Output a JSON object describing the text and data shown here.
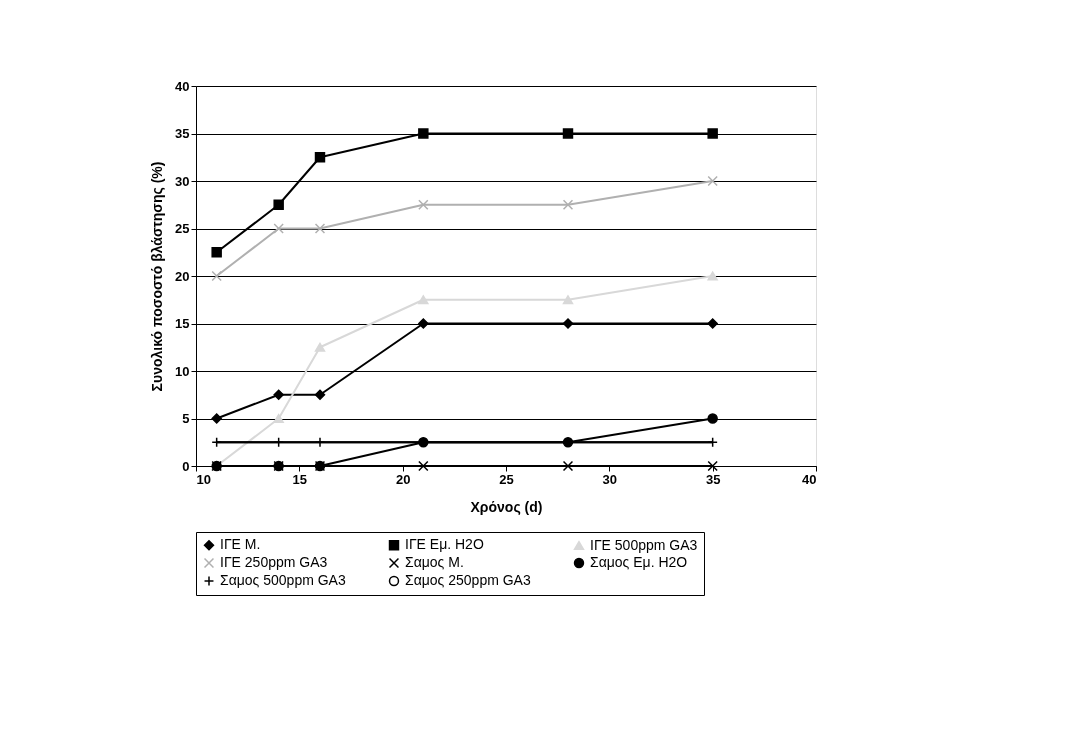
{
  "chart_data": {
    "type": "line",
    "xlabel": "Χρόνος (d)",
    "ylabel": "Συνολικό ποσοστό βλάστησης (%)",
    "x": [
      11,
      14,
      16,
      21,
      28,
      35
    ],
    "xlim": [
      10,
      40
    ],
    "xticks": [
      10,
      15,
      20,
      25,
      30,
      35,
      40
    ],
    "ylim": [
      0,
      40
    ],
    "yticks": [
      0,
      5,
      10,
      15,
      20,
      25,
      30,
      35,
      40
    ],
    "grid": "y",
    "legend": "bottom",
    "series": [
      {
        "name": "ΙΓΕ Μ.",
        "color": "#000000",
        "marker": "diamond",
        "values": [
          5,
          7.5,
          7.5,
          15,
          15,
          15
        ]
      },
      {
        "name": "ΙΓΕ Εμ. H2O",
        "color": "#000000",
        "marker": "square",
        "values": [
          22.5,
          27.5,
          32.5,
          35,
          35,
          35
        ]
      },
      {
        "name": "ΙΓΕ 500ppm GA3",
        "color": "#d8d8d8",
        "marker": "triangle",
        "values": [
          0,
          5,
          12.5,
          17.5,
          17.5,
          20
        ]
      },
      {
        "name": "ΙΓΕ 250ppm GA3",
        "color": "#b0b0b0",
        "marker": "cross",
        "values": [
          20,
          25,
          25,
          27.5,
          27.5,
          30
        ]
      },
      {
        "name": "Σαμος Μ.",
        "color": "#000000",
        "marker": "cross",
        "values": [
          0,
          0,
          0,
          0,
          0,
          0
        ]
      },
      {
        "name": "Σαμος Εμ. H2O",
        "color": "#000000",
        "marker": "circle",
        "values": [
          0,
          0,
          0,
          2.5,
          2.5,
          5
        ]
      },
      {
        "name": "Σαμος 500ppm GA3",
        "color": "#000000",
        "marker": "plus",
        "values": [
          2.5,
          2.5,
          2.5,
          2.5,
          2.5,
          2.5
        ]
      },
      {
        "name": "Σαμος 250ppm GA3",
        "color": "#000000",
        "marker": "none",
        "values": [
          2.5,
          2.5,
          2.5,
          2.5,
          2.5,
          2.5
        ]
      }
    ]
  }
}
